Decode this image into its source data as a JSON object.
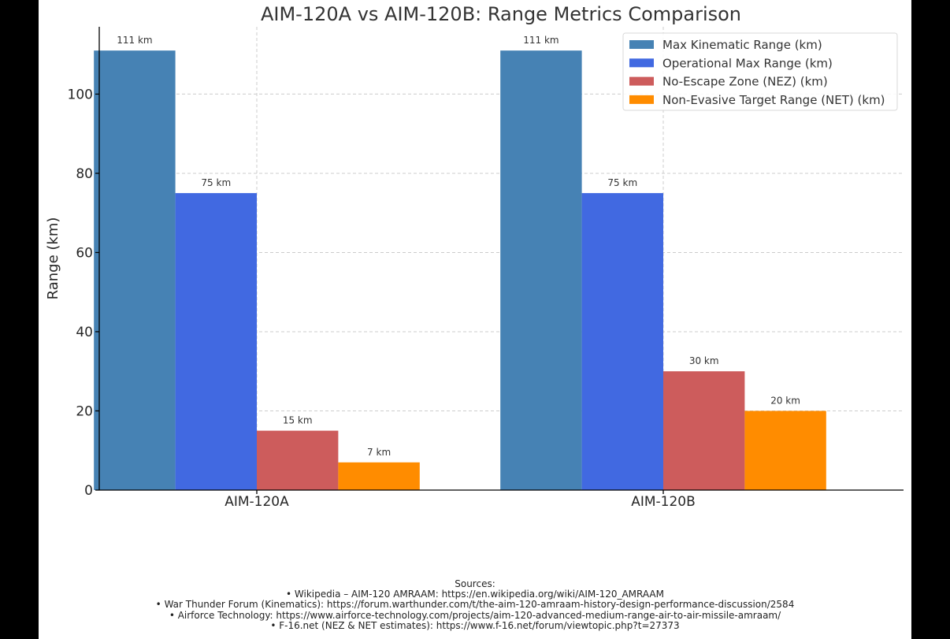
{
  "chart_data": {
    "type": "bar",
    "title": "AIM-120A vs AIM-120B: Range Metrics Comparison",
    "xlabel": "",
    "ylabel": "Range (km)",
    "ylim": [
      0,
      117
    ],
    "yticks": [
      0,
      20,
      40,
      60,
      80,
      100
    ],
    "grid": true,
    "legend_position": "top-right",
    "categories": [
      "AIM-120A",
      "AIM-120B"
    ],
    "series": [
      {
        "name": "Max Kinematic Range (km)",
        "color": "#4682b4",
        "values": [
          111,
          111
        ],
        "labels": [
          "111 km",
          "111 km"
        ]
      },
      {
        "name": "Operational Max Range (km)",
        "color": "#4169e1",
        "values": [
          75,
          75
        ],
        "labels": [
          "75 km",
          "75 km"
        ]
      },
      {
        "name": "No-Escape Zone (NEZ) (km)",
        "color": "#cd5c5c",
        "values": [
          15,
          30
        ],
        "labels": [
          "15 km",
          "30 km"
        ]
      },
      {
        "name": "Non-Evasive Target Range (NET) (km)",
        "color": "#ff8c00",
        "values": [
          7,
          20
        ],
        "labels": [
          "7 km",
          "20 km"
        ]
      }
    ]
  },
  "sources": {
    "heading": "Sources:",
    "lines": [
      "• Wikipedia – AIM-120 AMRAAM: https://en.wikipedia.org/wiki/AIM-120_AMRAAM",
      "• War Thunder Forum (Kinematics): https://forum.warthunder.com/t/the-aim-120-amraam-history-design-performance-discussion/2584",
      "• Airforce Technology: https://www.airforce-technology.com/projects/aim-120-advanced-medium-range-air-to-air-missile-amraam/",
      "• F-16.net (NEZ & NET estimates): https://www.f-16.net/forum/viewtopic.php?t=27373"
    ]
  }
}
